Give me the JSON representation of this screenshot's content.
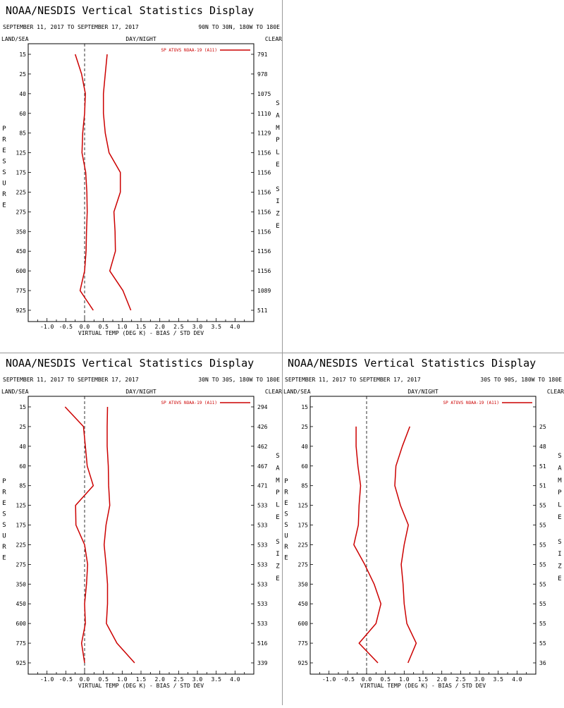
{
  "chart_data": [
    {
      "type": "line",
      "title": "NOAA/NESDIS Vertical Statistics Display",
      "date_range": "SEPTEMBER 11, 2017 TO SEPTEMBER 17, 2017",
      "region": "90N TO 30N, 180W TO 180E",
      "left_label": "LAND/SEA",
      "center_label": "DAY/NIGHT",
      "right_label": "CLEAR",
      "xlabel": "VIRTUAL TEMP (DEG K) - BIAS / STD DEV",
      "ylabel": "PRESSURE",
      "y2label": "SAMPLE SIZE",
      "legend": "SP ATOVS NOAA-19 (A11)",
      "xlim": [
        -1.5,
        4.5
      ],
      "x_ticks": [
        "-1.0",
        "-0.5",
        "0.0",
        "0.5",
        "1.0",
        "1.5",
        "2.0",
        "2.5",
        "3.0",
        "3.5",
        "4.0"
      ],
      "pressure_levels": [
        "15",
        "25",
        "40",
        "60",
        "85",
        "125",
        "175",
        "225",
        "275",
        "350",
        "450",
        "600",
        "775",
        "925"
      ],
      "sample_size": [
        "791",
        "978",
        "1075",
        "1110",
        "1129",
        "1156",
        "1156",
        "1156",
        "1156",
        "1156",
        "1156",
        "1156",
        "1089",
        "511"
      ],
      "series": [
        {
          "name": "bias",
          "values": [
            -0.25,
            -0.08,
            0.02,
            0.0,
            -0.05,
            -0.07,
            0.03,
            0.06,
            0.07,
            0.05,
            0.04,
            0.0,
            -0.12,
            0.23
          ]
        },
        {
          "name": "std_dev",
          "values": [
            0.6,
            0.55,
            0.5,
            0.5,
            0.55,
            0.65,
            0.95,
            0.95,
            0.78,
            0.81,
            0.82,
            0.67,
            1.02,
            1.23
          ]
        }
      ]
    },
    {
      "type": "line",
      "title": "NOAA/NESDIS Vertical Statistics Display",
      "date_range": "SEPTEMBER 11, 2017 TO SEPTEMBER 17, 2017",
      "region": "30N TO 30S, 180W TO 180E",
      "left_label": "LAND/SEA",
      "center_label": "DAY/NIGHT",
      "right_label": "CLEAR",
      "xlabel": "VIRTUAL TEMP (DEG K) - BIAS / STD DEV",
      "ylabel": "PRESSURE",
      "y2label": "SAMPLE SIZE",
      "legend": "SP ATOVS NOAA-19 (A11)",
      "xlim": [
        -1.5,
        4.5
      ],
      "x_ticks": [
        "-1.0",
        "-0.5",
        "0.0",
        "0.5",
        "1.0",
        "1.5",
        "2.0",
        "2.5",
        "3.0",
        "3.5",
        "4.0"
      ],
      "pressure_levels": [
        "15",
        "25",
        "40",
        "60",
        "85",
        "125",
        "175",
        "225",
        "275",
        "350",
        "450",
        "600",
        "775",
        "925"
      ],
      "sample_size": [
        "294",
        "426",
        "462",
        "467",
        "471",
        "533",
        "533",
        "533",
        "533",
        "533",
        "533",
        "533",
        "516",
        "339"
      ],
      "series": [
        {
          "name": "bias",
          "values": [
            -0.52,
            -0.03,
            0.02,
            0.07,
            0.23,
            -0.24,
            -0.23,
            0.0,
            0.08,
            0.05,
            0.0,
            0.02,
            -0.08,
            0.0
          ]
        },
        {
          "name": "std_dev",
          "values": [
            0.61,
            0.6,
            0.6,
            0.63,
            0.64,
            0.67,
            0.57,
            0.52,
            0.57,
            0.61,
            0.61,
            0.58,
            0.86,
            1.33
          ]
        }
      ]
    },
    {
      "type": "line",
      "title": "NOAA/NESDIS Vertical Statistics Display",
      "date_range": "SEPTEMBER 11, 2017 TO SEPTEMBER 17, 2017",
      "region": "30S TO 90S, 180W TO 180E",
      "left_label": "LAND/SEA",
      "center_label": "DAY/NIGHT",
      "right_label": "CLEAR",
      "xlabel": "VIRTUAL TEMP (DEG K) - BIAS / STD DEV",
      "ylabel": "PRESSURE",
      "y2label": "SAMPLE SIZE",
      "legend": "SP ATOVS NOAA-19 (A11)",
      "xlim": [
        -1.5,
        4.5
      ],
      "x_ticks": [
        "-1.0",
        "-0.5",
        "0.0",
        "0.5",
        "1.0",
        "1.5",
        "2.0",
        "2.5",
        "3.0",
        "3.5",
        "4.0"
      ],
      "pressure_levels": [
        "15",
        "25",
        "40",
        "60",
        "85",
        "125",
        "175",
        "225",
        "275",
        "350",
        "450",
        "600",
        "775",
        "925"
      ],
      "sample_size": [
        "",
        "25",
        "48",
        "51",
        "51",
        "55",
        "55",
        "55",
        "55",
        "55",
        "55",
        "55",
        "55",
        "36"
      ],
      "series": [
        {
          "name": "bias",
          "values": [
            null,
            -0.28,
            -0.28,
            -0.23,
            -0.16,
            -0.2,
            -0.22,
            -0.34,
            -0.05,
            0.2,
            0.38,
            0.25,
            -0.2,
            0.3
          ]
        },
        {
          "name": "std_dev",
          "values": [
            null,
            1.15,
            0.95,
            0.78,
            0.75,
            0.9,
            1.11,
            1.0,
            0.92,
            0.97,
            1.0,
            1.07,
            1.32,
            1.1
          ]
        }
      ]
    }
  ]
}
